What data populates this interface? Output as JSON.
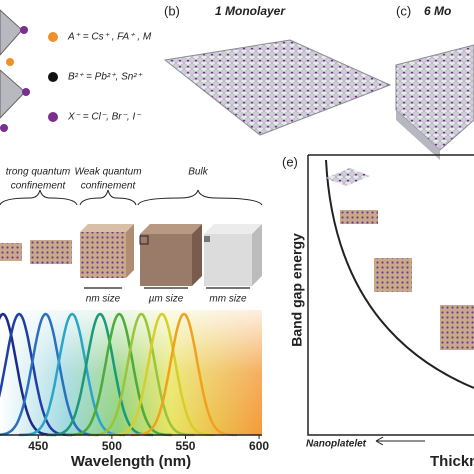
{
  "panel_a": {
    "legend": [
      {
        "color": "#f0902a",
        "label": "A⁺ = Cs⁺ , FA⁺ , M"
      },
      {
        "color": "#111111",
        "label": "B²⁺ = Pb²⁺, Sn²⁺"
      },
      {
        "color": "#7a2e8e",
        "label": "X⁻ = Cl⁻, Br⁻, I⁻"
      }
    ]
  },
  "panel_b": {
    "label": "(b)",
    "title": "1 Monolayer"
  },
  "panel_c": {
    "label": "(c)",
    "title": "6 Mo"
  },
  "panel_d": {
    "regimes": [
      {
        "line1": "trong quantum",
        "line2": "confinement"
      },
      {
        "line1": "Weak quantum",
        "line2": "confinement"
      },
      {
        "line1": "Bulk"
      }
    ],
    "sizes": [
      "nm size",
      "µm size",
      "mm size"
    ]
  },
  "chart_data": {
    "type": "spectra",
    "xlabel": "Wavelength (nm)",
    "xlim": [
      424,
      602
    ],
    "xticks": [
      450,
      500,
      550,
      600
    ],
    "values": [
      426,
      437,
      455,
      473,
      492,
      505,
      520,
      534,
      549
    ],
    "colors": [
      "#1b2a8a",
      "#1f3fa8",
      "#2a6fc0",
      "#2aa5c9",
      "#1a9a7a",
      "#4dab3a",
      "#9cc43a",
      "#d6cf2a",
      "#f0a21e"
    ]
  },
  "panel_e": {
    "label": "(e)",
    "ylabel": "Band gap energy",
    "x_start": "Nanoplatelet",
    "xlabel": "Thicknes"
  }
}
